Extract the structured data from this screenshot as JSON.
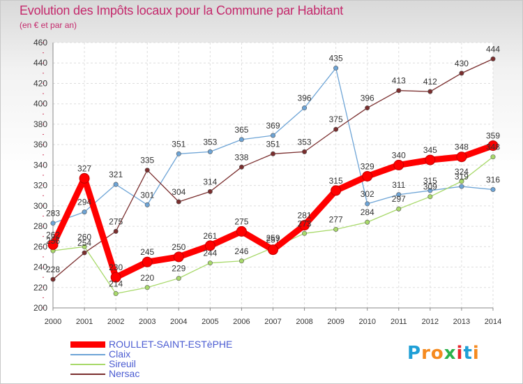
{
  "title": "Evolution des Impôts locaux pour la Commune par Habitant",
  "subtitle": "(en € et par an)",
  "logo": {
    "text": "Proxiti",
    "letters": [
      "P",
      "r",
      "o",
      "x",
      "i",
      "t",
      "i"
    ],
    "letter_colors": [
      "#1f9fd6",
      "#f58a1f",
      "#f58a1f",
      "#2bb24c",
      "#e8262b",
      "#1f9fd6",
      "#f58a1f"
    ]
  },
  "chart_data": {
    "type": "line",
    "title": "Evolution des Impôts locaux pour la Commune par Habitant",
    "subtitle": "(en € et par an)",
    "x": [
      "2000",
      "2001",
      "2002",
      "2003",
      "2004",
      "2005",
      "2006",
      "2007",
      "2008",
      "2009",
      "2010",
      "2011",
      "2012",
      "2013",
      "2014"
    ],
    "ylim": [
      200,
      460
    ],
    "yticks": [
      200,
      220,
      240,
      260,
      280,
      300,
      320,
      340,
      360,
      380,
      400,
      420,
      440,
      460
    ],
    "grid": true,
    "legend_position": "bottom-left",
    "series": [
      {
        "name": "ROULLET-SAINT-ESTèPHE",
        "color": "#ff0000",
        "emphasis": true,
        "values": [
          262,
          327,
          230,
          245,
          250,
          261,
          275,
          257,
          281,
          315,
          329,
          340,
          345,
          348,
          359
        ]
      },
      {
        "name": "Claix",
        "color": "#6da4d6",
        "values": [
          283,
          294,
          321,
          301,
          351,
          353,
          365,
          369,
          396,
          435,
          302,
          311,
          315,
          319,
          316
        ]
      },
      {
        "name": "Sireuil",
        "color": "#a8d96a",
        "values": [
          256,
          260,
          214,
          220,
          229,
          244,
          246,
          259,
          273,
          277,
          284,
          297,
          309,
          324,
          348
        ]
      },
      {
        "name": "Nersac",
        "color": "#7a2e2e",
        "values": [
          228,
          254,
          275,
          335,
          304,
          314,
          338,
          351,
          353,
          375,
          396,
          413,
          412,
          430,
          444
        ]
      }
    ]
  }
}
